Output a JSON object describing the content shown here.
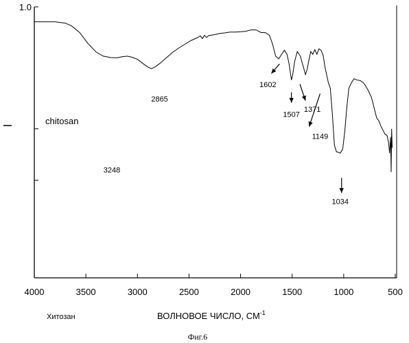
{
  "chart_data": {
    "type": "line",
    "title": "",
    "xlabel": "ВОЛНОВОЕ ЧИСЛО, СМ",
    "xlabel_sup": "-1",
    "ylabel": "",
    "xlim": [
      4000,
      500
    ],
    "ylim": [
      0,
      1.0
    ],
    "x_reversed": true,
    "grid": false,
    "x_ticks": [
      "4000",
      "3500",
      "3000",
      "2500",
      "2000",
      "1500",
      "1000",
      "500"
    ],
    "x_tick_values": [
      4000,
      3500,
      3000,
      2500,
      2000,
      1500,
      1000,
      500
    ],
    "y_tick_labels": [
      {
        "value": 1.0,
        "label": "1.0"
      }
    ],
    "y_minor_tick_values": [
      0.55,
      0.36
    ],
    "series": [
      {
        "name": "",
        "color": "#000000",
        "x": [
          4000,
          3900,
          3800,
          3700,
          3640,
          3560,
          3480,
          3400,
          3330,
          3260,
          3200,
          3150,
          3100,
          3050,
          3000,
          2950,
          2900,
          2865,
          2830,
          2780,
          2720,
          2660,
          2600,
          2540,
          2480,
          2420,
          2390,
          2370,
          2350,
          2330,
          2310,
          2260,
          2200,
          2150,
          2100,
          2050,
          2000,
          1950,
          1900,
          1850,
          1800,
          1760,
          1720,
          1690,
          1660,
          1630,
          1602,
          1575,
          1550,
          1530,
          1515,
          1507,
          1495,
          1475,
          1450,
          1420,
          1400,
          1385,
          1371,
          1355,
          1340,
          1320,
          1300,
          1280,
          1260,
          1240,
          1220,
          1200,
          1180,
          1160,
          1149,
          1130,
          1110,
          1090,
          1070,
          1050,
          1034,
          1010,
          990,
          970,
          950,
          925,
          900,
          870,
          840,
          810,
          790,
          760,
          730,
          700,
          680,
          660,
          640,
          620,
          600,
          580,
          565,
          555,
          545,
          540,
          535,
          530
        ],
        "y": [
          0.945,
          0.945,
          0.945,
          0.94,
          0.93,
          0.905,
          0.865,
          0.833,
          0.818,
          0.813,
          0.812,
          0.816,
          0.818,
          0.814,
          0.806,
          0.792,
          0.778,
          0.772,
          0.778,
          0.792,
          0.812,
          0.832,
          0.848,
          0.862,
          0.876,
          0.886,
          0.893,
          0.883,
          0.895,
          0.887,
          0.894,
          0.897,
          0.902,
          0.904,
          0.907,
          0.907,
          0.908,
          0.91,
          0.915,
          0.915,
          0.905,
          0.905,
          0.895,
          0.862,
          0.818,
          0.808,
          0.825,
          0.84,
          0.825,
          0.79,
          0.75,
          0.73,
          0.75,
          0.8,
          0.835,
          0.818,
          0.79,
          0.77,
          0.75,
          0.768,
          0.8,
          0.835,
          0.825,
          0.842,
          0.825,
          0.845,
          0.84,
          0.822,
          0.775,
          0.74,
          0.72,
          0.7,
          0.605,
          0.49,
          0.465,
          0.463,
          0.46,
          0.475,
          0.54,
          0.63,
          0.7,
          0.72,
          0.735,
          0.73,
          0.728,
          0.72,
          0.71,
          0.69,
          0.665,
          0.62,
          0.59,
          0.58,
          0.56,
          0.545,
          0.53,
          0.525,
          0.5,
          0.46,
          0.52,
          0.39,
          0.55,
          0.48
        ]
      }
    ],
    "annotations": [
      {
        "text": "3248",
        "x": 3248,
        "arrow": false
      },
      {
        "text": "2865",
        "x": 2865,
        "arrow": false
      },
      {
        "text": "1602",
        "x": 1602,
        "arrow": true
      },
      {
        "text": "1507",
        "x": 1507,
        "arrow": true
      },
      {
        "text": "1371",
        "x": 1371,
        "arrow": true
      },
      {
        "text": "1149",
        "x": 1149,
        "arrow": true
      },
      {
        "text": "1034",
        "x": 1034,
        "arrow": true
      }
    ],
    "inner_label": "chitosan",
    "bottom_left_label": "Хитозан",
    "caption": "Фиг.6"
  }
}
